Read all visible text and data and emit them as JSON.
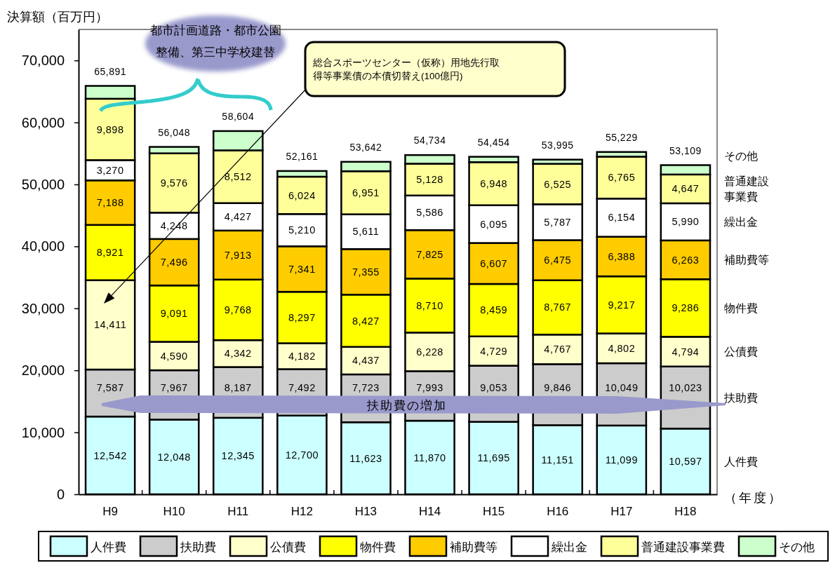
{
  "chart_data": {
    "type": "bar",
    "stacked": true,
    "ylabel": "決算額（百万円）",
    "xlabel": "（年度）",
    "categories": [
      "H9",
      "H10",
      "H11",
      "H12",
      "H13",
      "H14",
      "H15",
      "H16",
      "H17",
      "H18"
    ],
    "ylim": [
      0,
      75000
    ],
    "yticks": [
      0,
      {
        "value": 10000,
        "label": "10,000"
      },
      {
        "value": 20000,
        "label": "20,000"
      },
      {
        "value": 30000,
        "label": "30,000"
      },
      {
        "value": 40000,
        "label": "40,000"
      },
      {
        "value": 50000,
        "label": "50,000"
      },
      {
        "value": 60000,
        "label": "60,000"
      },
      {
        "value": 70000,
        "label": "70,000"
      }
    ],
    "series": [
      {
        "name": "人件費",
        "color": "#ccffff",
        "values": [
          12542,
          12048,
          12345,
          12700,
          11623,
          11870,
          11695,
          11151,
          11099,
          10597
        ],
        "value_labels": [
          "12,542",
          "12,048",
          "12,345",
          "12,700",
          "11,623",
          "11,870",
          "11,695",
          "11,151",
          "11,099",
          "10,597"
        ]
      },
      {
        "name": "扶助費",
        "color": "#cccccc",
        "values": [
          7587,
          7967,
          8187,
          7492,
          7723,
          7993,
          9053,
          9846,
          10049,
          10023
        ],
        "value_labels": [
          "7,587",
          "7,967",
          "8,187",
          "7,492",
          "7,723",
          "7,993",
          "9,053",
          "9,846",
          "10,049",
          "10,023"
        ]
      },
      {
        "name": "公債費",
        "color": "#ffffcc",
        "values": [
          14411,
          4590,
          4342,
          4182,
          4437,
          6228,
          4729,
          4767,
          4802,
          4794
        ],
        "value_labels": [
          "14,411",
          "4,590",
          "4,342",
          "4,182",
          "4,437",
          "6,228",
          "4,729",
          "4,767",
          "4,802",
          "4,794"
        ]
      },
      {
        "name": "物件費",
        "color": "#ffff00",
        "values": [
          8921,
          9091,
          9768,
          8297,
          8427,
          8710,
          8459,
          8767,
          9217,
          9286
        ],
        "value_labels": [
          "8,921",
          "9,091",
          "9,768",
          "8,297",
          "8,427",
          "8,710",
          "8,459",
          "8,767",
          "9,217",
          "9,286"
        ]
      },
      {
        "name": "補助費等",
        "color": "#ffcc00",
        "values": [
          7188,
          7496,
          7913,
          7341,
          7355,
          7825,
          6607,
          6475,
          6388,
          6263
        ],
        "value_labels": [
          "7,188",
          "7,496",
          "7,913",
          "7,341",
          "7,355",
          "7,825",
          "6,607",
          "6,475",
          "6,388",
          "6,263"
        ]
      },
      {
        "name": "繰出金",
        "color": "#ffffff",
        "values": [
          3270,
          4248,
          4427,
          5210,
          5611,
          5586,
          6095,
          5787,
          6154,
          5990
        ],
        "value_labels": [
          "3,270",
          "4,248",
          "4,427",
          "5,210",
          "5,611",
          "5,586",
          "6,095",
          "5,787",
          "6,154",
          "5,990"
        ]
      },
      {
        "name": "普通建設事業費",
        "color": "#ffff99",
        "values": [
          9898,
          9576,
          8512,
          6024,
          6951,
          5128,
          6948,
          6525,
          6765,
          4647
        ],
        "value_labels": [
          "9,898",
          "9,576",
          "8,512",
          "6,024",
          "6,951",
          "5,128",
          "6,948",
          "6,525",
          "6,765",
          "4,647"
        ]
      },
      {
        "name": "その他",
        "color": "#ccffcc",
        "values": [
          2074,
          1032,
          3110,
          915,
          1515,
          1394,
          868,
          677,
          755,
          1509
        ]
      }
    ],
    "totals": [
      "65,891",
      "56,048",
      "58,604",
      "52,161",
      "53,642",
      "54,734",
      "54,454",
      "53,995",
      "55,229",
      "53,109"
    ],
    "legend": "bottom",
    "annotations": [
      "都市計画道路・都市公園整備、第三中学校建替",
      "総合スポーツセンター（仮称）用地先行取得等事業債の本債切替え(100億円)",
      "扶助費の増加"
    ]
  }
}
